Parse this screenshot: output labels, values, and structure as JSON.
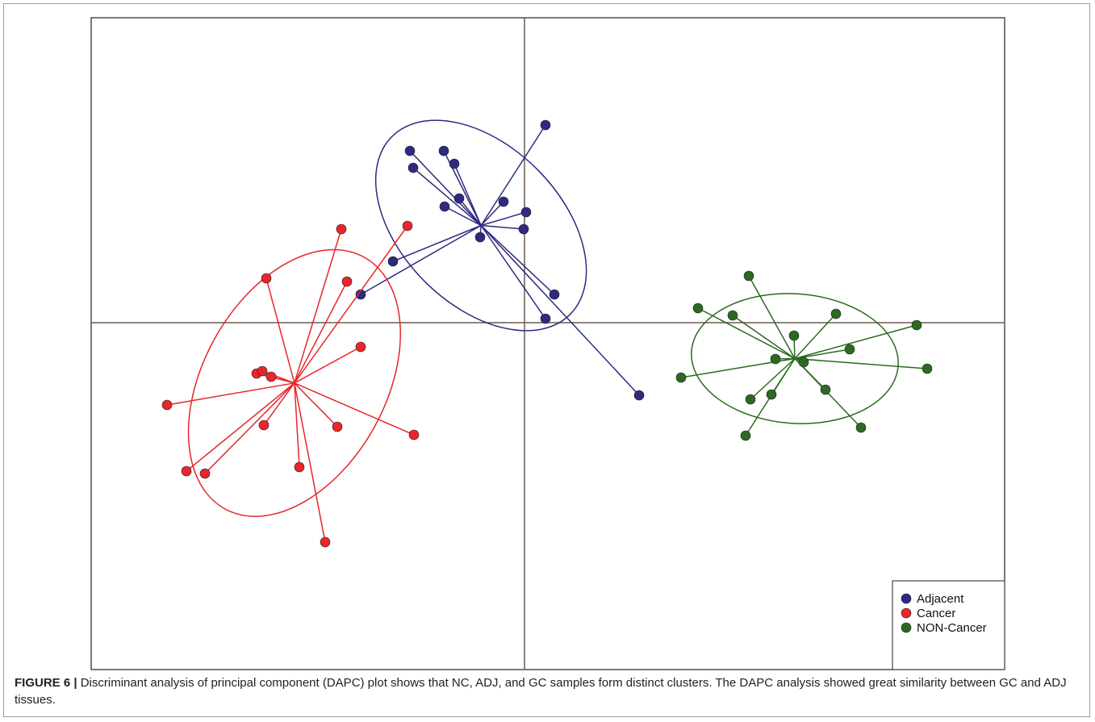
{
  "chart_data": {
    "type": "scatter",
    "xlim": [
      -5.37,
      5.95
    ],
    "ylim": [
      -4.3,
      3.78
    ],
    "crosshair": true,
    "ellipses": true,
    "centroid_lines": true,
    "legend": "bottom-right",
    "series": [
      {
        "name": "Adjacent",
        "color": "#2e2a7f",
        "x": [
          0.26,
          -1.42,
          -1.0,
          -1.38,
          -0.87,
          -0.81,
          -0.99,
          -0.26,
          0.02,
          -0.01,
          -0.55,
          -1.63,
          -2.03,
          0.37,
          0.26,
          1.42
        ],
        "y": [
          2.45,
          2.13,
          2.13,
          1.92,
          1.97,
          1.54,
          1.44,
          1.5,
          1.37,
          1.16,
          1.06,
          0.76,
          0.35,
          0.35,
          0.05,
          -0.9
        ]
      },
      {
        "name": "Cancer",
        "color": "#e8262a",
        "x": [
          -2.27,
          -1.45,
          -3.2,
          -2.2,
          -2.03,
          -3.32,
          -3.25,
          -3.14,
          -4.43,
          -3.23,
          -2.32,
          -1.37,
          -2.79,
          -4.19,
          -3.96,
          -2.47
        ],
        "y": [
          1.16,
          1.2,
          0.55,
          0.51,
          -0.3,
          -0.63,
          -0.6,
          -0.67,
          -1.02,
          -1.27,
          -1.29,
          -1.39,
          -1.79,
          -1.84,
          -1.87,
          -2.72
        ]
      },
      {
        "name": "NON-Cancer",
        "color": "#2c6a1f",
        "x": [
          2.78,
          2.15,
          2.58,
          3.86,
          4.86,
          3.34,
          4.03,
          3.11,
          3.46,
          1.94,
          4.99,
          3.73,
          3.06,
          2.8,
          4.17,
          2.74
        ],
        "y": [
          0.58,
          0.18,
          0.09,
          0.11,
          -0.03,
          -0.16,
          -0.33,
          -0.45,
          -0.49,
          -0.68,
          -0.57,
          -0.83,
          -0.89,
          -0.95,
          -1.3,
          -1.4
        ]
      }
    ]
  },
  "caption": {
    "label": "FIGURE 6 |",
    "text": "Discriminant analysis of principal component (DAPC) plot shows that NC, ADJ, and GC samples form distinct clusters. The DAPC analysis showed great similarity between GC and ADJ tissues."
  }
}
